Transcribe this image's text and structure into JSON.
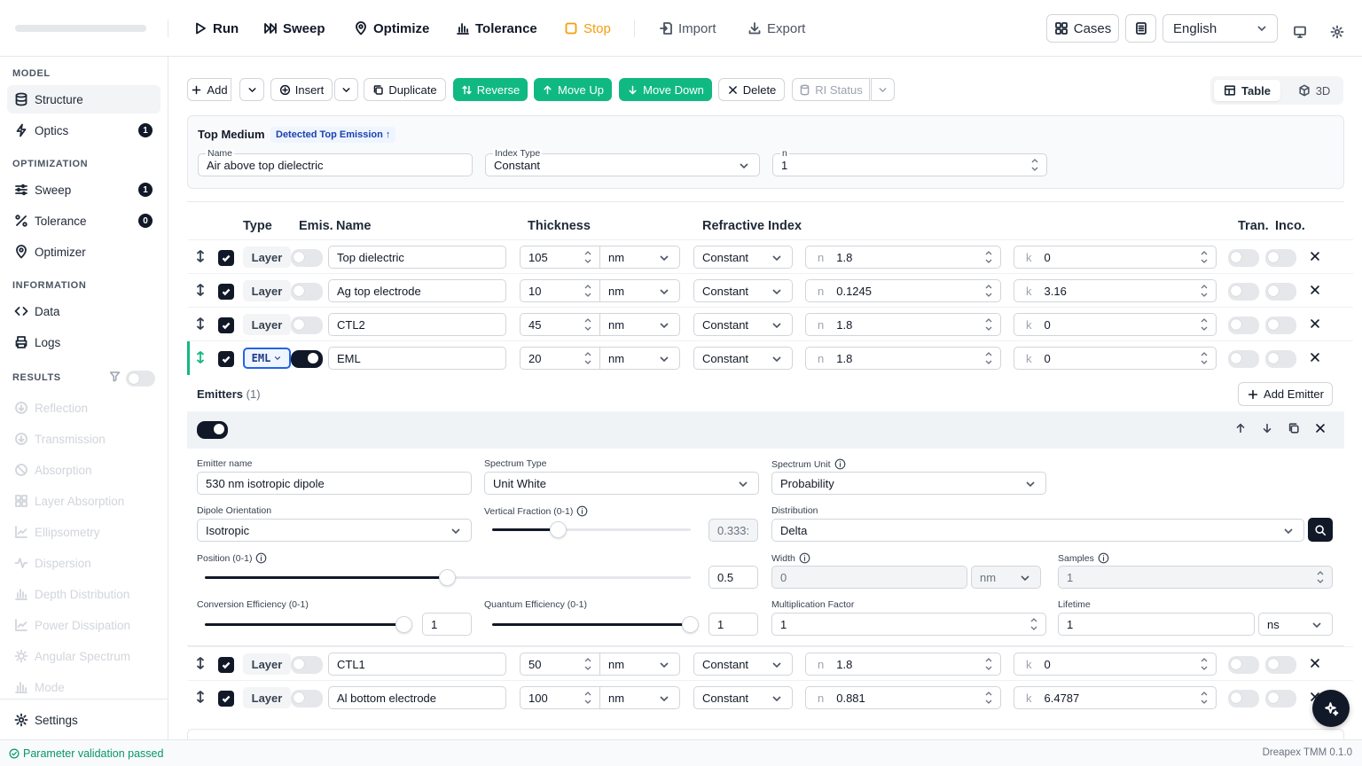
{
  "toolbar": {
    "run": "Run",
    "sweep": "Sweep",
    "optimize": "Optimize",
    "tolerance": "Tolerance",
    "stop": "Stop",
    "import": "Import",
    "export": "Export",
    "cases": "Cases",
    "language": "English",
    "icons": [
      "play-icon",
      "sweep-icon",
      "pin-icon",
      "bar-chart-icon",
      "square-icon",
      "import-icon",
      "download-icon",
      "grid-icon",
      "list-icon",
      "monitor-icon",
      "gear-icon"
    ]
  },
  "sidebar": {
    "model_header": "MODEL",
    "optimization_header": "OPTIMIZATION",
    "information_header": "INFORMATION",
    "results_header": "RESULTS",
    "structure": "Structure",
    "optics": "Optics",
    "optics_badge": "1",
    "sweep": "Sweep",
    "sweep_badge": "1",
    "tolerance": "Tolerance",
    "tolerance_badge": "0",
    "optimizer": "Optimizer",
    "data": "Data",
    "logs": "Logs",
    "results": [
      "Reflection",
      "Transmission",
      "Absorption",
      "Layer Absorption",
      "Ellipsometry",
      "Dispersion",
      "Depth Distribution",
      "Power Dissipation",
      "Angular Spectrum",
      "Mode"
    ],
    "settings": "Settings"
  },
  "actions": {
    "add": "Add",
    "insert": "Insert",
    "duplicate": "Duplicate",
    "reverse": "Reverse",
    "move_up": "Move Up",
    "move_down": "Move Down",
    "delete": "Delete",
    "ri_status": "RI Status",
    "table": "Table",
    "view_3d": "3D"
  },
  "top_medium": {
    "title": "Top Medium",
    "badge": "Detected Top Emission ↑",
    "name_label": "Name",
    "name_value": "Air above top dielectric",
    "index_type_label": "Index Type",
    "index_type_value": "Constant",
    "n_label": "n",
    "n_value": "1"
  },
  "table": {
    "headers": {
      "type": "Type",
      "emis": "Emis.",
      "name": "Name",
      "thickness": "Thickness",
      "ri": "Refractive Index",
      "tran": "Tran.",
      "inco": "Inco."
    },
    "rows": [
      {
        "type": "Layer",
        "name": "Top dielectric",
        "thickness": "105",
        "unit": "nm",
        "ri_type": "Constant",
        "n_label": "n",
        "n": "1.8",
        "k_label": "k",
        "k": "0"
      },
      {
        "type": "Layer",
        "name": "Ag top electrode",
        "thickness": "10",
        "unit": "nm",
        "ri_type": "Constant",
        "n_label": "n",
        "n": "0.1245",
        "k_label": "k",
        "k": "3.16"
      },
      {
        "type": "Layer",
        "name": "CTL2",
        "thickness": "45",
        "unit": "nm",
        "ri_type": "Constant",
        "n_label": "n",
        "n": "1.8",
        "k_label": "k",
        "k": "0"
      },
      {
        "type": "EML",
        "name": "EML",
        "thickness": "20",
        "unit": "nm",
        "ri_type": "Constant",
        "n_label": "n",
        "n": "1.8",
        "k_label": "k",
        "k": "0"
      },
      {
        "type": "Layer",
        "name": "CTL1",
        "thickness": "50",
        "unit": "nm",
        "ri_type": "Constant",
        "n_label": "n",
        "n": "1.8",
        "k_label": "k",
        "k": "0"
      },
      {
        "type": "Layer",
        "name": "Al bottom electrode",
        "thickness": "100",
        "unit": "nm",
        "ri_type": "Constant",
        "n_label": "n",
        "n": "0.881",
        "k_label": "k",
        "k": "6.4787"
      }
    ]
  },
  "emitters": {
    "title": "Emitters",
    "count": "(1)",
    "add_emitter": "Add Emitter",
    "emitter_name_label": "Emitter name",
    "emitter_name_value": "530 nm isotropic dipole",
    "spectrum_type_label": "Spectrum Type",
    "spectrum_type_value": "Unit White",
    "spectrum_unit_label": "Spectrum Unit",
    "spectrum_unit_value": "Probability",
    "dipole_label": "Dipole Orientation",
    "dipole_value": "Isotropic",
    "vertical_fraction_label": "Vertical Fraction (0-1)",
    "vertical_fraction_value": "0.333:",
    "vertical_fraction_level": 0.333,
    "distribution_label": "Distribution",
    "distribution_value": "Delta",
    "position_label": "Position (0-1)",
    "position_value": "0.5",
    "position_level": 0.5,
    "width_label": "Width",
    "width_value": "0",
    "width_unit": "nm",
    "samples_label": "Samples",
    "samples_value": "1",
    "conversion_label": "Conversion Efficiency (0-1)",
    "conversion_value": "1",
    "conversion_level": 1,
    "quantum_label": "Quantum Efficiency (0-1)",
    "quantum_value": "1",
    "quantum_level": 1,
    "multiplication_label": "Multiplication Factor",
    "multiplication_value": "1",
    "lifetime_label": "Lifetime",
    "lifetime_value": "1",
    "lifetime_unit": "ns"
  },
  "status": {
    "message": "Parameter validation passed",
    "version": "Dreapex TMM 0.1.0"
  },
  "colors": {
    "accent_green": "#10b981",
    "accent_blue": "#2563eb",
    "stop_orange": "#f59e0b",
    "dark": "#111827"
  }
}
